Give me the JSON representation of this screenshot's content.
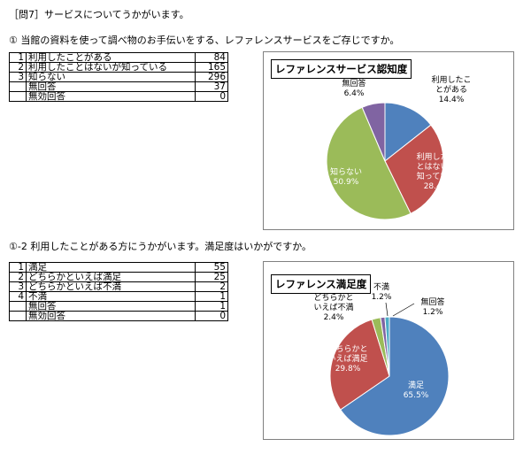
{
  "header": "［問7］サービスについてうかがいます。",
  "q1": {
    "question": "① 当館の資料を使って調べ物のお手伝いをする、レファレンスサービスをご存じですか。",
    "rows": [
      {
        "no": "1",
        "label": "利用したことがある",
        "value": "84"
      },
      {
        "no": "2",
        "label": "利用したことはないが知っている",
        "value": "165"
      },
      {
        "no": "3",
        "label": "知らない",
        "value": "296"
      },
      {
        "no": "",
        "label": "無回答",
        "value": "37"
      },
      {
        "no": "",
        "label": "無効回答",
        "value": "0"
      }
    ]
  },
  "q2": {
    "question": "①-2 利用したことがある方にうかがいます。満足度はいかがですか。",
    "rows": [
      {
        "no": "1",
        "label": "満足",
        "value": "55"
      },
      {
        "no": "2",
        "label": "どちらかといえば満足",
        "value": "25"
      },
      {
        "no": "3",
        "label": "どちらかといえば不満",
        "value": "2"
      },
      {
        "no": "4",
        "label": "不満",
        "value": "1"
      },
      {
        "no": "",
        "label": "無回答",
        "value": "1"
      },
      {
        "no": "",
        "label": "無効回答",
        "value": "0"
      }
    ]
  },
  "chart_data": [
    {
      "type": "pie",
      "title": "レファレンスサービス認知度",
      "series": [
        {
          "labels": [
            "利用したことがある",
            "利用したことはないが知っている",
            "知らない",
            "無回答"
          ],
          "label_lines": [
            [
              "利用したこ",
              "とがある"
            ],
            [
              "利用したこ",
              "とはないが",
              "知っている"
            ],
            [
              "知らない"
            ],
            [
              "無回答"
            ]
          ],
          "values": [
            14.4,
            28.4,
            50.9,
            6.4
          ],
          "value_labels": [
            "14.4%",
            "28.4%",
            "50.9%",
            "6.4%"
          ],
          "colors": [
            "#4f81bd",
            "#c0504d",
            "#9bbb59",
            "#8064a2"
          ]
        }
      ]
    },
    {
      "type": "pie",
      "title": "レファレンス満足度",
      "series": [
        {
          "labels": [
            "満足",
            "どちらかといえば満足",
            "どちらかといえば不満",
            "不満",
            "無回答"
          ],
          "label_lines": [
            [
              "満足"
            ],
            [
              "どちらかと",
              "いえば満足"
            ],
            [
              "どちらかと",
              "いえば不満"
            ],
            [
              "不満"
            ],
            [
              "無回答"
            ]
          ],
          "values": [
            65.5,
            29.8,
            2.4,
            1.2,
            1.2
          ],
          "value_labels": [
            "65.5%",
            "29.8%",
            "2.4%",
            "1.2%",
            "1.2%"
          ],
          "colors": [
            "#4f81bd",
            "#c0504d",
            "#9bbb59",
            "#8064a2",
            "#4bacc6"
          ]
        }
      ]
    }
  ]
}
